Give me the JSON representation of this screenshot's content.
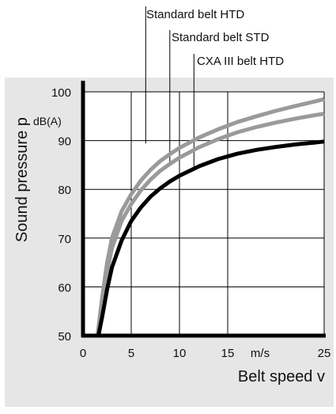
{
  "chart_data": {
    "type": "line",
    "xlabel": "Belt speed v",
    "x_unit": "m/s",
    "ylabel": "Sound pressure p",
    "y_unit": "dB(A)",
    "xlim": [
      0,
      25
    ],
    "ylim": [
      50,
      100
    ],
    "x_ticks": [
      0,
      5,
      10,
      15,
      25
    ],
    "y_ticks": [
      50,
      60,
      70,
      80,
      90,
      100
    ],
    "grid": true,
    "colors": {
      "panel": "#e6e6e6",
      "gray_series": "#9a9a9a",
      "black_series": "#000000",
      "grid": "#000000"
    },
    "series": [
      {
        "name": "Standard belt HTD",
        "color": "#9a9a9a",
        "x": [
          1.5,
          2,
          2.5,
          3,
          4,
          5,
          6,
          7,
          8,
          9,
          10,
          12,
          14,
          16,
          18,
          20,
          22,
          24,
          25
        ],
        "y": [
          50,
          58,
          65,
          70,
          75.5,
          79,
          81.8,
          84,
          85.8,
          87.2,
          88.5,
          90.6,
          92.3,
          93.8,
          95,
          96.1,
          97.1,
          98,
          98.5
        ]
      },
      {
        "name": "Standard belt STD",
        "color": "#9a9a9a",
        "x": [
          1.6,
          2,
          2.5,
          3,
          4,
          5,
          6,
          7,
          8,
          9,
          10,
          12,
          14,
          16,
          18,
          20,
          22,
          24,
          25
        ],
        "y": [
          50,
          56,
          63,
          68,
          73.5,
          77,
          79.8,
          82,
          83.8,
          85.2,
          86.5,
          88.6,
          90.3,
          91.7,
          92.8,
          93.7,
          94.5,
          95.2,
          95.5
        ]
      },
      {
        "name": "CXA III belt HTD",
        "color": "#000000",
        "x": [
          1.6,
          2,
          2.5,
          3,
          4,
          5,
          6,
          7,
          8,
          9,
          10,
          12,
          14,
          16,
          18,
          20,
          22,
          24,
          25
        ],
        "y": [
          50,
          54,
          59.5,
          64,
          69.5,
          73.5,
          76.3,
          78.5,
          80.2,
          81.6,
          82.8,
          84.7,
          86.2,
          87.3,
          88.1,
          88.7,
          89.2,
          89.6,
          89.8
        ]
      }
    ],
    "legend_anchor_x": [
      6.5,
      9,
      11.5
    ]
  }
}
